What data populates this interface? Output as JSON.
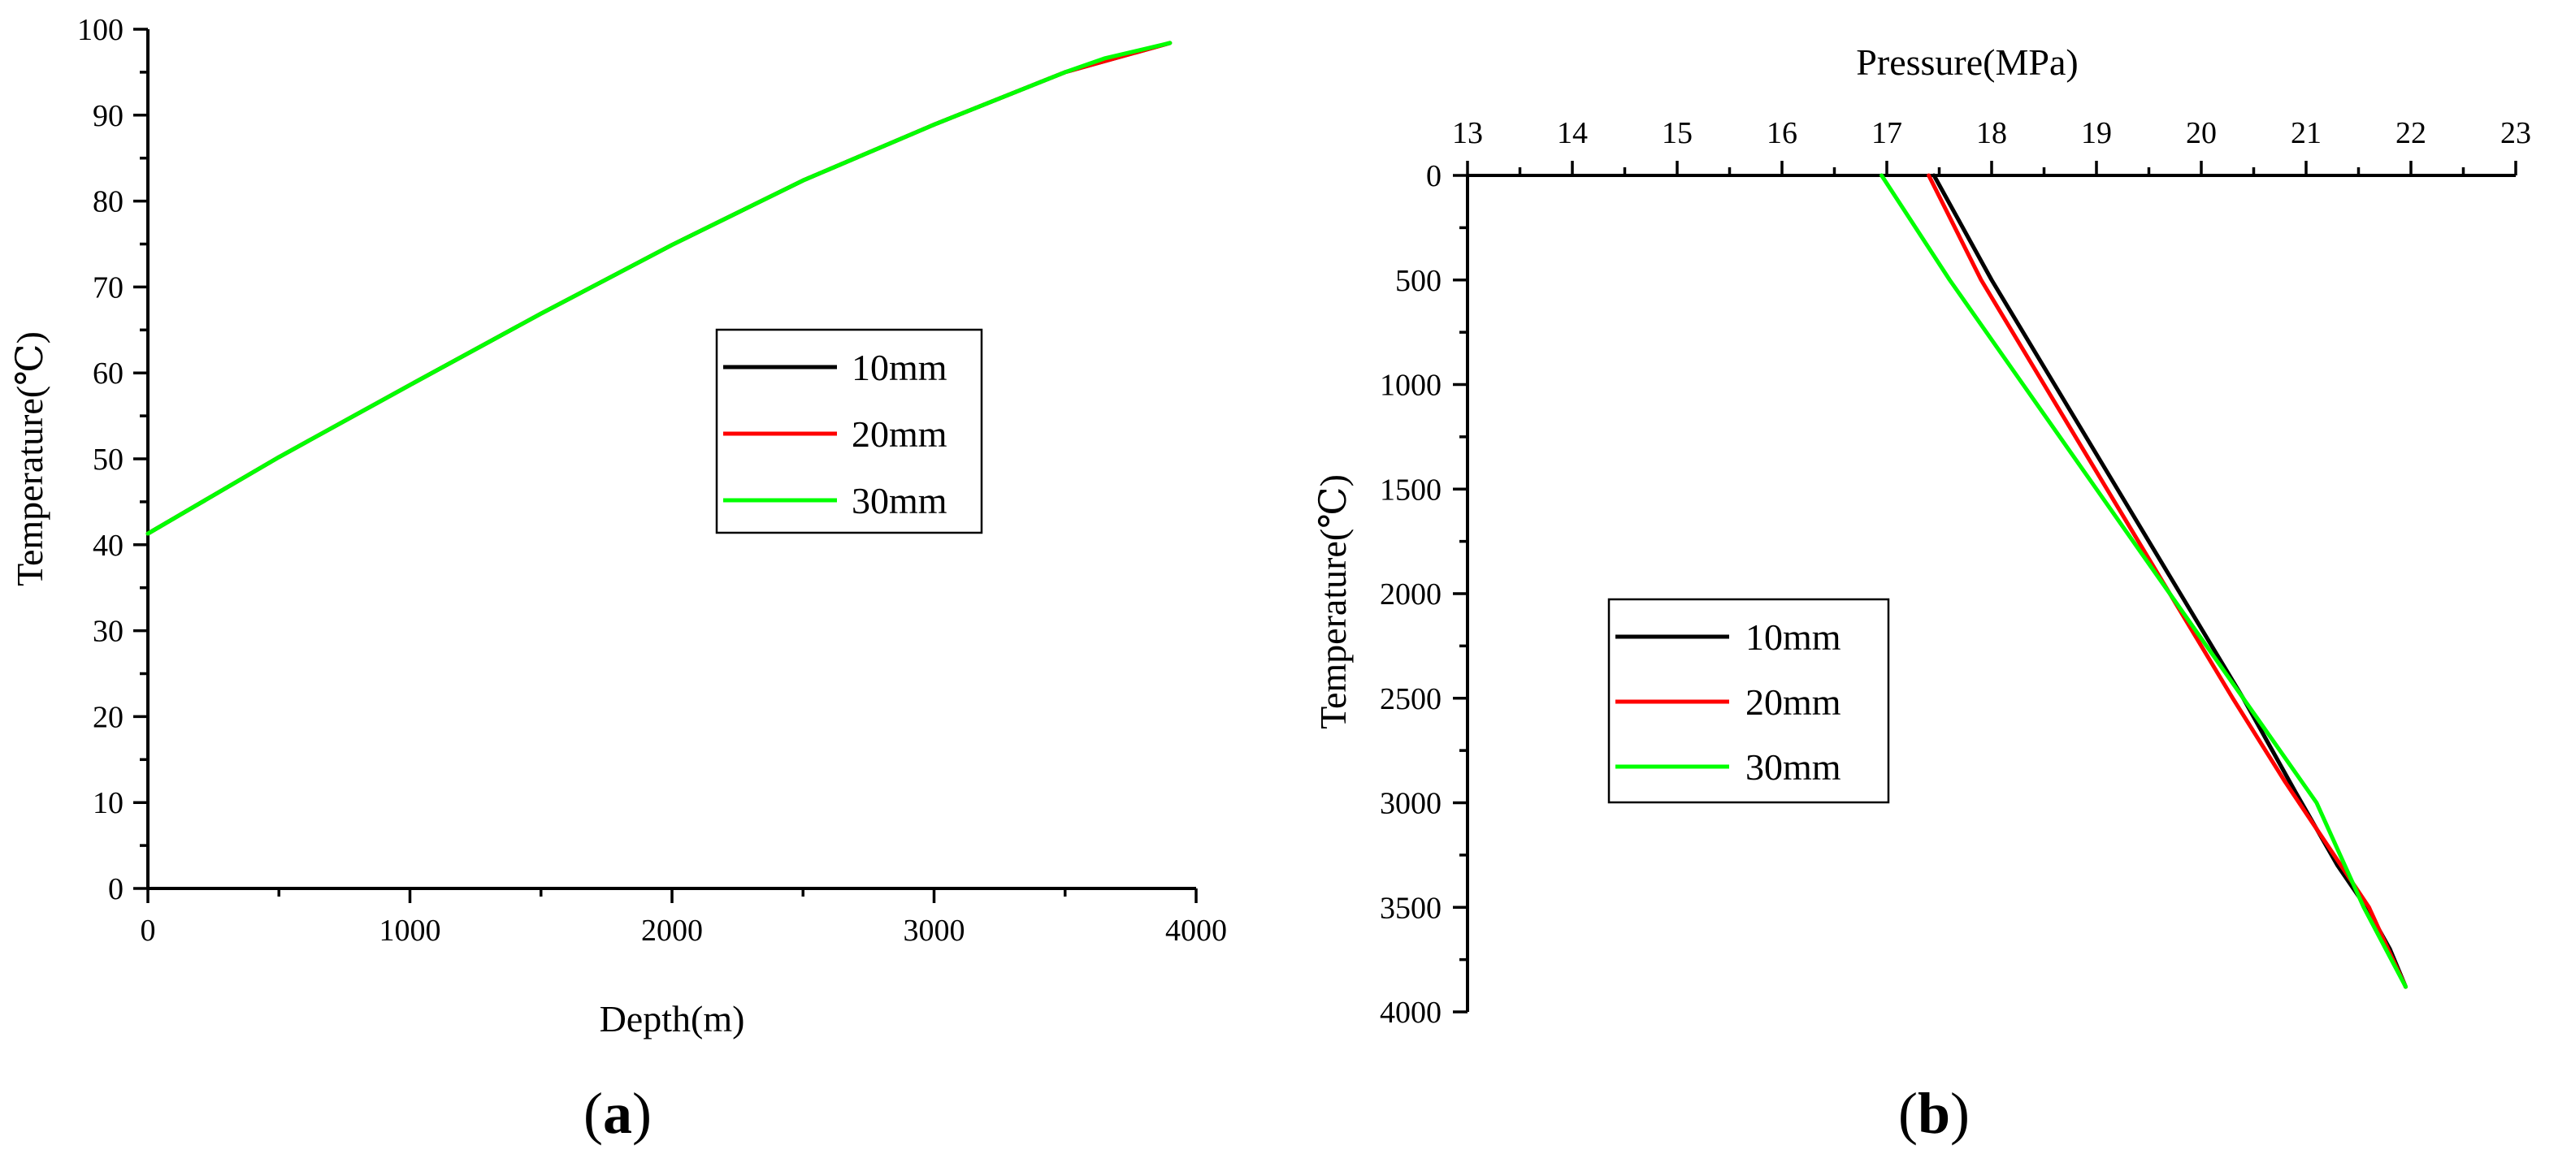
{
  "chart_data": [
    {
      "panel": "a",
      "type": "line",
      "xlabel": "Depth(m)",
      "ylabel": "Temperature(℃)",
      "xlim": [
        0,
        4000
      ],
      "ylim": [
        0,
        100
      ],
      "x_ticks": [
        "0",
        "1000",
        "2000",
        "3000",
        "4000"
      ],
      "y_ticks": [
        "0",
        "10",
        "20",
        "30",
        "40",
        "50",
        "60",
        "70",
        "80",
        "90",
        "100"
      ],
      "x_axis_position": "bottom",
      "grid": false,
      "legend_position": "center-right",
      "series": [
        {
          "name": "10mm",
          "color": "#000000",
          "x": [
            0,
            500,
            1000,
            1500,
            2000,
            2500,
            3000,
            3500,
            3900
          ],
          "y": [
            41.3,
            50.2,
            58.6,
            66.9,
            74.9,
            82.4,
            88.9,
            95.0,
            98.4
          ]
        },
        {
          "name": "20mm",
          "color": "#ff0000",
          "x": [
            0,
            500,
            1000,
            1500,
            2000,
            2500,
            3000,
            3500,
            3900
          ],
          "y": [
            41.3,
            50.2,
            58.6,
            66.9,
            74.9,
            82.4,
            88.9,
            95.0,
            98.4
          ]
        },
        {
          "name": "30mm",
          "color": "#00ff00",
          "x": [
            0,
            500,
            1000,
            1500,
            2000,
            2500,
            3000,
            3500,
            3650,
            3900
          ],
          "y": [
            41.3,
            50.2,
            58.6,
            66.9,
            74.9,
            82.4,
            88.9,
            95.0,
            96.6,
            98.4
          ]
        }
      ]
    },
    {
      "panel": "b",
      "type": "line",
      "xlabel": "Pressure(MPa)",
      "ylabel": "Temperature(℃)",
      "xlim": [
        13,
        23
      ],
      "ylim": [
        0,
        4000
      ],
      "x_ticks": [
        "13",
        "14",
        "15",
        "16",
        "17",
        "18",
        "19",
        "20",
        "21",
        "22",
        "23"
      ],
      "y_ticks": [
        "0",
        "500",
        "1000",
        "1500",
        "2000",
        "2500",
        "3000",
        "3500",
        "4000"
      ],
      "x_axis_position": "top",
      "y_inverted": true,
      "grid": false,
      "legend_position": "center-left",
      "series": [
        {
          "name": "10mm",
          "color": "#000000",
          "x": [
            17.45,
            18.0,
            18.6,
            19.2,
            19.8,
            20.4,
            20.9,
            21.3,
            21.6,
            21.8,
            21.95
          ],
          "y": [
            0,
            500,
            1000,
            1500,
            2000,
            2500,
            2950,
            3300,
            3520,
            3700,
            3880
          ]
        },
        {
          "name": "20mm",
          "color": "#ff0000",
          "x": [
            17.4,
            17.9,
            18.5,
            19.1,
            19.7,
            20.3,
            20.8,
            21.2,
            21.6,
            21.8,
            21.95
          ],
          "y": [
            0,
            500,
            1000,
            1500,
            2000,
            2500,
            2900,
            3200,
            3500,
            3720,
            3880
          ]
        },
        {
          "name": "30mm",
          "color": "#00ff00",
          "x": [
            16.95,
            17.6,
            18.3,
            19.0,
            19.7,
            20.4,
            21.1,
            21.55,
            21.95
          ],
          "y": [
            0,
            500,
            1000,
            1500,
            2000,
            2500,
            3000,
            3500,
            3880
          ]
        }
      ]
    }
  ],
  "panel_labels": [
    "a",
    "b"
  ]
}
